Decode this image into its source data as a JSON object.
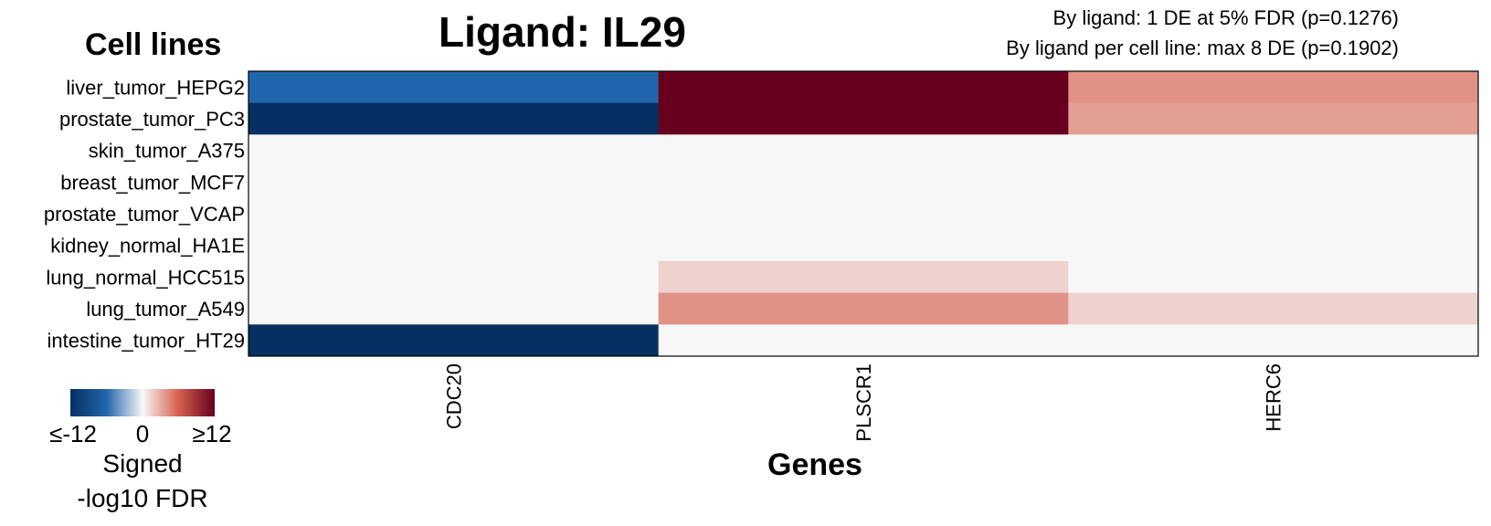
{
  "title": "Ligand: IL29",
  "annotations": [
    "By ligand: 1 DE at 5% FDR (p=0.1276)",
    "By ligand per cell line: max 8 DE (p=0.1902)"
  ],
  "legend": {
    "tick_labels": [
      "≤-12",
      "0",
      "≥12"
    ],
    "title_lines": [
      "Signed",
      "-log10 FDR"
    ],
    "range": [
      -12,
      12
    ],
    "colors": [
      "#053061",
      "#2166ac",
      "#f7f7f7",
      "#d6604d",
      "#67001f"
    ]
  },
  "chart_data": {
    "type": "heatmap",
    "xlabel": "Genes",
    "ylabel": "Cell lines",
    "columns": [
      "CDC20",
      "PLSCR1",
      "HERC6"
    ],
    "rows": [
      "liver_tumor_HEPG2",
      "prostate_tumor_PC3",
      "skin_tumor_A375",
      "breast_tumor_MCF7",
      "prostate_tumor_VCAP",
      "kidney_normal_HA1E",
      "lung_normal_HCC515",
      "lung_tumor_A549",
      "intestine_tumor_HT29"
    ],
    "values": [
      [
        -6,
        12,
        4
      ],
      [
        -12,
        12,
        3.5
      ],
      [
        0,
        0,
        0
      ],
      [
        0,
        0,
        0
      ],
      [
        0,
        0,
        0
      ],
      [
        0,
        0,
        0
      ],
      [
        0,
        1.5,
        0
      ],
      [
        0,
        4,
        1.5
      ],
      [
        -12,
        0,
        0
      ]
    ],
    "value_range": [
      -12,
      12
    ]
  }
}
